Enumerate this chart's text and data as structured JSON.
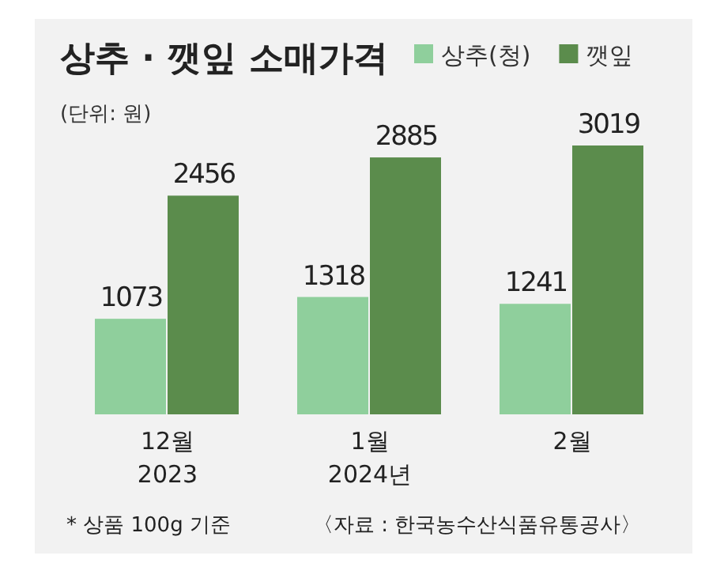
{
  "chart_data": {
    "type": "bar",
    "title": "상추 · 깻잎 소매가격",
    "subtitle": "(단위: 원)",
    "categories": [
      "12월\n2023",
      "1월\n2024년",
      "2월"
    ],
    "series": [
      {
        "name": "상추(청)",
        "color": "#8fcf9c",
        "values": [
          1073,
          1318,
          1241
        ]
      },
      {
        "name": "깻잎",
        "color": "#5b8c4c",
        "values": [
          2456,
          2885,
          3019
        ]
      }
    ],
    "data_labels": true,
    "legend": "top",
    "annotations": [
      "* 상품 100g 기준",
      "〈자료 : 한국농수산식품유통공사〉"
    ]
  }
}
